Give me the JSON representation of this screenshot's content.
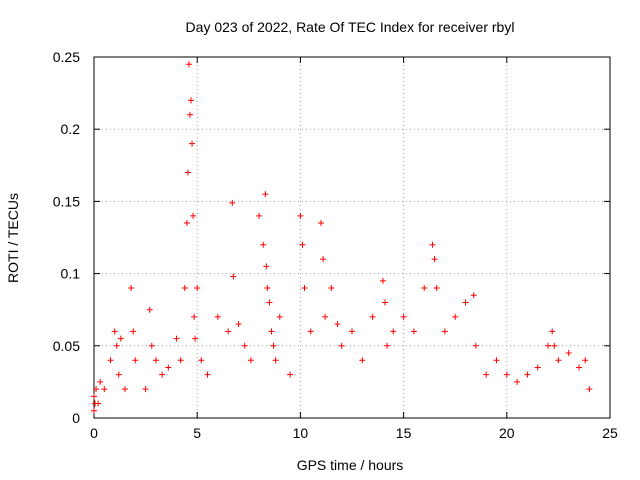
{
  "chart_data": {
    "type": "scatter",
    "title": "Day 023 of 2022, Rate Of TEC Index for receiver rbyl",
    "xlabel": "GPS time / hours",
    "ylabel": "ROTI / TECUs",
    "xlim": [
      0,
      25
    ],
    "ylim": [
      0,
      0.25
    ],
    "xticks": [
      0,
      5,
      10,
      15,
      20,
      25
    ],
    "xtick_labels": [
      "0",
      "5",
      "10",
      "15",
      "20",
      "25"
    ],
    "yticks": [
      0,
      0.05,
      0.1,
      0.15,
      0.2,
      0.25
    ],
    "ytick_labels": [
      "0",
      "0.05",
      "0.1",
      "0.15",
      "0.2",
      "0.25"
    ],
    "grid": true,
    "marker": "+",
    "marker_color": "#ff0000",
    "series": [
      {
        "name": "ROTI",
        "x": [
          0.0,
          0.0,
          0.05,
          0.1,
          0.2,
          0.3,
          0.5,
          0.8,
          1.0,
          1.1,
          1.2,
          1.3,
          1.5,
          1.8,
          1.9,
          2.0,
          2.5,
          2.7,
          2.8,
          3.0,
          3.3,
          3.6,
          4.0,
          4.2,
          4.4,
          4.5,
          4.55,
          4.6,
          4.65,
          4.7,
          4.75,
          4.8,
          4.85,
          4.9,
          5.0,
          5.2,
          5.5,
          6.0,
          6.5,
          6.7,
          6.75,
          7.0,
          7.3,
          7.6,
          8.0,
          8.2,
          8.3,
          8.35,
          8.4,
          8.5,
          8.6,
          8.7,
          8.8,
          9.0,
          9.5,
          10.0,
          10.1,
          10.2,
          10.5,
          11.0,
          11.1,
          11.2,
          11.5,
          11.8,
          12.0,
          12.5,
          13.0,
          13.5,
          14.0,
          14.1,
          14.2,
          14.5,
          15.0,
          15.5,
          16.0,
          16.4,
          16.5,
          16.6,
          17.0,
          17.5,
          18.0,
          18.4,
          18.5,
          19.0,
          19.5,
          20.0,
          20.5,
          21.0,
          21.5,
          22.0,
          22.2,
          22.3,
          22.5,
          23.0,
          23.5,
          23.8,
          24.0
        ],
        "y": [
          0.015,
          0.005,
          0.01,
          0.02,
          0.01,
          0.025,
          0.02,
          0.04,
          0.06,
          0.05,
          0.03,
          0.055,
          0.02,
          0.09,
          0.06,
          0.04,
          0.02,
          0.075,
          0.05,
          0.04,
          0.03,
          0.035,
          0.055,
          0.04,
          0.09,
          0.135,
          0.17,
          0.245,
          0.21,
          0.22,
          0.19,
          0.14,
          0.07,
          0.055,
          0.09,
          0.04,
          0.03,
          0.07,
          0.06,
          0.149,
          0.098,
          0.065,
          0.05,
          0.04,
          0.14,
          0.12,
          0.155,
          0.105,
          0.09,
          0.08,
          0.06,
          0.05,
          0.04,
          0.07,
          0.03,
          0.14,
          0.12,
          0.09,
          0.06,
          0.135,
          0.11,
          0.07,
          0.09,
          0.065,
          0.05,
          0.06,
          0.04,
          0.07,
          0.095,
          0.08,
          0.05,
          0.06,
          0.07,
          0.06,
          0.09,
          0.12,
          0.11,
          0.09,
          0.06,
          0.07,
          0.08,
          0.085,
          0.05,
          0.03,
          0.04,
          0.03,
          0.025,
          0.03,
          0.035,
          0.05,
          0.06,
          0.05,
          0.04,
          0.045,
          0.035,
          0.04,
          0.02
        ]
      }
    ]
  }
}
